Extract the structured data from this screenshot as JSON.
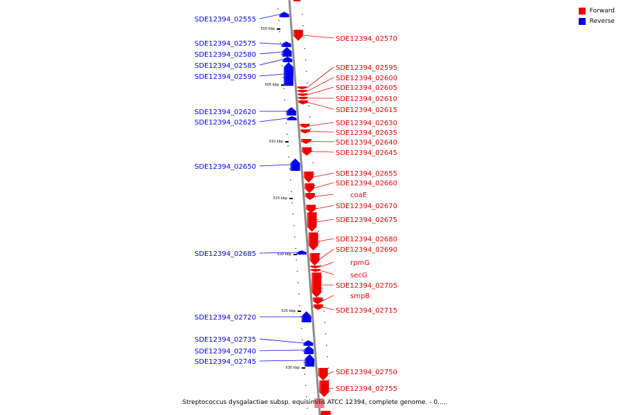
{
  "legend": {
    "forward_label": "Forward",
    "reverse_label": "Reverse",
    "forward_color": "#ee0000",
    "reverse_color": "#0000ee"
  },
  "caption": "Streptococcus dysgalactiae subsp. equisimilis ATCC 12394, complete genome. - 0.....",
  "scale_labels": [
    "500 kbp",
    "505 kbp",
    "510 kbp",
    "515 kbp",
    "520 kbp",
    "525 kbp",
    "530 kbp"
  ],
  "genes_reverse": [
    "SDE12394_02555",
    "SDE12394_02575",
    "SDE12394_02580",
    "SDE12394_02585",
    "SDE12394_02590",
    "SDE12394_02620",
    "SDE12394_02625",
    "SDE12394_02650",
    "SDE12394_02685",
    "SDE12394_02720",
    "SDE12394_02735",
    "SDE12394_02740",
    "SDE12394_02745"
  ],
  "genes_forward": [
    "SDE12394_02570",
    "SDE12394_02595",
    "SDE12394_02600",
    "SDE12394_02605",
    "SDE12394_02610",
    "SDE12394_02615",
    "SDE12394_02630",
    "SDE12394_02635",
    "SDE12394_02640",
    "SDE12394_02645",
    "SDE12394_02655",
    "SDE12394_02660",
    "coaE",
    "SDE12394_02670",
    "SDE12394_02675",
    "SDE12394_02680",
    "SDE12394_02690",
    "rpmG",
    "secG",
    "SDE12394_02705",
    "smpB",
    "SDE12394_02715",
    "SDE12394_02750",
    "SDE12394_02755"
  ]
}
